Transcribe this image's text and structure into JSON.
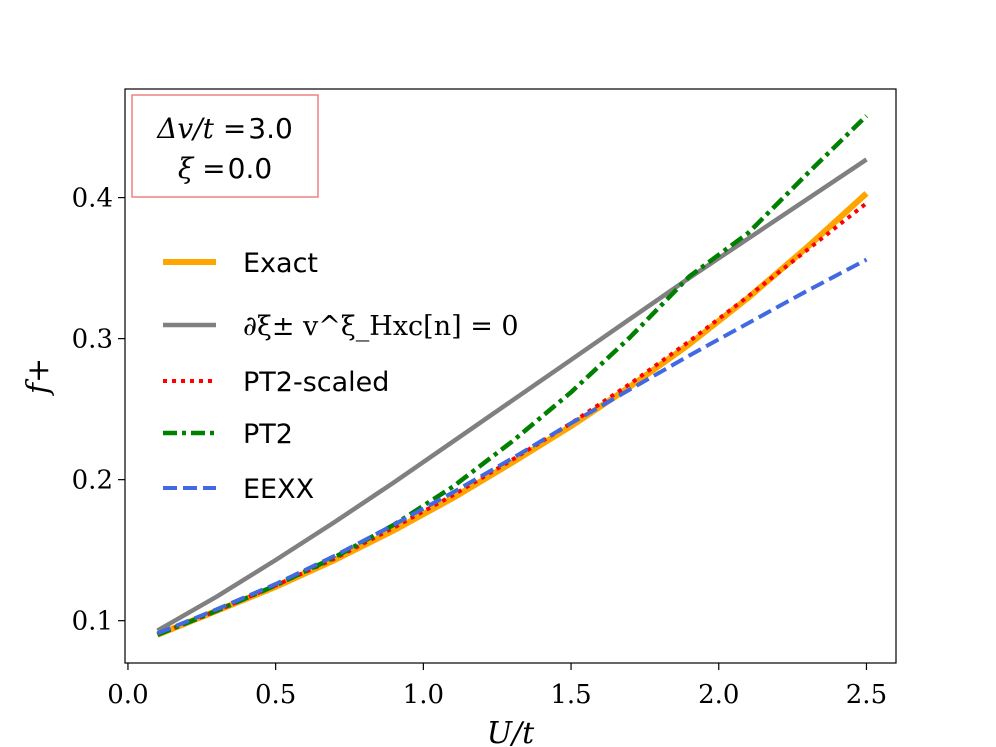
{
  "chart_data": {
    "type": "line",
    "xlabel": "U/t",
    "ylabel": "f+",
    "xlim": [
      -0.01,
      2.6
    ],
    "ylim": [
      0.07,
      0.477
    ],
    "xticks": [
      0.0,
      0.5,
      1.0,
      1.5,
      2.0,
      2.5
    ],
    "xtick_labels": [
      "0.0",
      "0.5",
      "1.0",
      "1.5",
      "2.0",
      "2.5"
    ],
    "yticks": [
      0.1,
      0.2,
      0.3,
      0.4
    ],
    "ytick_labels": [
      "0.1",
      "0.2",
      "0.3",
      "0.4"
    ],
    "annotation": {
      "line1_math": "Δv/t =",
      "line1_value": "3.0",
      "line2_math": "ξ =",
      "line2_value": "0.0",
      "border_color": "#f08080"
    },
    "legend_position": "center-left",
    "series": [
      {
        "name": "Exact",
        "color": "#ffa500",
        "style": "solid",
        "x": [
          0.1,
          0.3,
          0.5,
          0.7,
          0.9,
          1.1,
          1.3,
          1.5,
          1.7,
          1.9,
          2.1,
          2.3,
          2.5
        ],
        "y": [
          0.09,
          0.107,
          0.124,
          0.143,
          0.164,
          0.187,
          0.212,
          0.238,
          0.266,
          0.296,
          0.329,
          0.365,
          0.403
        ]
      },
      {
        "name": "∂ξ± v^ξ_Hxc[n] = 0",
        "color": "#808080",
        "style": "solid",
        "x": [
          0.1,
          0.3,
          0.5,
          0.7,
          0.9,
          1.1,
          1.3,
          1.5,
          1.7,
          1.9,
          2.1,
          2.3,
          2.5
        ],
        "y": [
          0.093,
          0.117,
          0.143,
          0.17,
          0.198,
          0.227,
          0.256,
          0.285,
          0.314,
          0.343,
          0.371,
          0.399,
          0.427
        ]
      },
      {
        "name": "PT2-scaled",
        "color": "#ff0000",
        "style": "dotted",
        "x": [
          0.1,
          0.3,
          0.5,
          0.7,
          0.9,
          1.1,
          1.3,
          1.5,
          1.7,
          1.9,
          2.1,
          2.3,
          2.5
        ],
        "y": [
          0.09,
          0.107,
          0.125,
          0.144,
          0.166,
          0.189,
          0.214,
          0.24,
          0.268,
          0.298,
          0.33,
          0.363,
          0.396
        ]
      },
      {
        "name": "PT2",
        "color": "#008000",
        "style": "dashdot",
        "x": [
          0.1,
          0.3,
          0.5,
          0.7,
          0.9,
          1.1,
          1.3,
          1.5,
          1.7,
          1.9,
          2.1,
          2.3,
          2.5
        ],
        "y": [
          0.09,
          0.107,
          0.125,
          0.145,
          0.168,
          0.195,
          0.227,
          0.262,
          0.301,
          0.344,
          0.375,
          0.417,
          0.458
        ]
      },
      {
        "name": "EEXX",
        "color": "#4169e1",
        "style": "dashed",
        "x": [
          0.1,
          0.3,
          0.5,
          0.7,
          0.9,
          1.1,
          1.3,
          1.5,
          1.7,
          1.9,
          2.1,
          2.3,
          2.5
        ],
        "y": [
          0.091,
          0.108,
          0.126,
          0.146,
          0.168,
          0.191,
          0.215,
          0.24,
          0.264,
          0.288,
          0.311,
          0.334,
          0.356
        ]
      }
    ]
  }
}
